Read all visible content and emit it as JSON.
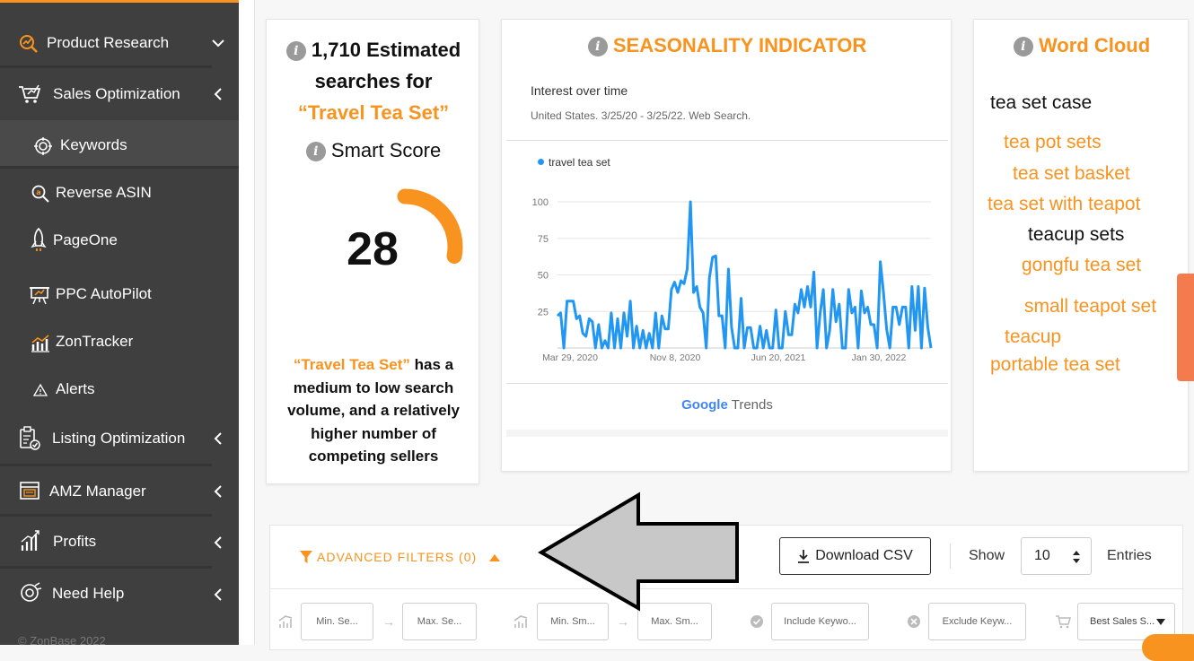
{
  "sidebar": {
    "items": [
      {
        "label": "Product Research",
        "icon": "product-research-icon",
        "chevron": "down"
      },
      {
        "label": "Sales Optimization",
        "icon": "cart-chart-icon",
        "chevron": "left"
      },
      {
        "label": "Keywords",
        "icon": "target-icon",
        "chevron": ""
      },
      {
        "label": "Reverse ASIN",
        "icon": "search-icon",
        "chevron": ""
      },
      {
        "label": "PageOne",
        "icon": "rocket-icon",
        "chevron": ""
      },
      {
        "label": "PPC AutoPilot",
        "icon": "autopilot-icon",
        "chevron": ""
      },
      {
        "label": "ZonTracker",
        "icon": "tracker-chart-icon",
        "chevron": ""
      },
      {
        "label": "Alerts",
        "icon": "alert-triangle-icon",
        "chevron": ""
      },
      {
        "label": "Listing Optimization",
        "icon": "clipboard-check-icon",
        "chevron": "left"
      },
      {
        "label": "AMZ Manager",
        "icon": "store-icon",
        "chevron": "left"
      },
      {
        "label": "Profits",
        "icon": "bar-chart-icon",
        "chevron": "left"
      },
      {
        "label": "Need Help",
        "icon": "lifebuoy-icon",
        "chevron": "left"
      }
    ],
    "copyright": "© ZonBase 2022"
  },
  "search_card": {
    "count_line": "1,710 Estimated",
    "searches_for": "searches for",
    "keyword_quoted": "“Travel Tea Set”",
    "smart_score_label": "Smart Score",
    "score": "28",
    "score_fraction": 0.28,
    "desc_keyword": "“Travel Tea Set”",
    "desc_rest_1": " has a",
    "desc_rest_2": "medium to low search",
    "desc_rest_3": "volume, and a relatively",
    "desc_rest_4": "higher number of",
    "desc_rest_5": "competing sellers"
  },
  "seasonality": {
    "title": "SEASONALITY INDICATOR",
    "interest_title": "Interest over time",
    "region_line": "United States. 3/25/20 - 3/25/22. Web Search.",
    "legend": "travel tea set",
    "google_brand": "Google",
    "trends_brand": "Trends"
  },
  "chart_data": {
    "type": "line",
    "title": "Interest over time",
    "x_ticks": [
      "Mar 29, 2020",
      "Nov 8, 2020",
      "Jun 20, 2021",
      "Jan 30, 2022"
    ],
    "y_ticks": [
      "100",
      "75",
      "50",
      "25"
    ],
    "ylim": [
      0,
      100
    ],
    "series": [
      {
        "name": "travel tea set",
        "color": "#2196f3",
        "values": [
          22,
          24,
          0,
          32,
          32,
          32,
          20,
          22,
          10,
          8,
          20,
          18,
          0,
          16,
          0,
          5,
          0,
          24,
          0,
          20,
          0,
          24,
          8,
          32,
          0,
          15,
          0,
          12,
          0,
          10,
          0,
          24,
          0,
          22,
          13,
          13,
          40,
          45,
          38,
          46,
          44,
          54,
          100,
          38,
          42,
          28,
          24,
          0,
          48,
          62,
          63,
          22,
          22,
          0,
          54,
          14,
          0,
          0,
          34,
          0,
          14,
          14,
          0,
          0,
          15,
          0,
          12,
          0,
          0,
          26,
          0,
          0,
          25,
          9,
          9,
          30,
          24,
          40,
          28,
          42,
          28,
          52,
          0,
          24,
          40,
          0,
          12,
          40,
          18,
          30,
          0,
          0,
          40,
          24,
          28,
          0,
          39,
          24,
          28,
          16,
          16,
          0,
          59,
          38,
          13,
          0,
          28,
          28,
          16,
          28,
          28,
          0,
          42,
          12,
          42,
          0,
          41,
          14,
          0
        ]
      }
    ],
    "grid": true
  },
  "word_cloud": {
    "title": "Word Cloud",
    "words": [
      "tea set case",
      "tea pot sets",
      "tea set basket",
      "tea set with teapot",
      "teacup sets",
      "gongfu tea set",
      "small teapot set",
      "teacup",
      "portable tea set"
    ]
  },
  "filters": {
    "advanced_label": "ADVANCED FILTERS (0)",
    "download_label": "Download CSV",
    "show_label": "Show",
    "entries_value": "10",
    "entries_label": "Entries",
    "min_search_placeholder": "Min. Se...",
    "max_search_placeholder": "Max. Se...",
    "min_smart_placeholder": "Min. Sm...",
    "max_smart_placeholder": "Max. Sm...",
    "include_placeholder": "Include Keywo...",
    "exclude_placeholder": "Exclude Keyw...",
    "best_sales_value": "Best Sales S..."
  },
  "colors": {
    "accent": "#f7931e",
    "sidebar": "#3f3f3f",
    "line": "#2196f3"
  }
}
